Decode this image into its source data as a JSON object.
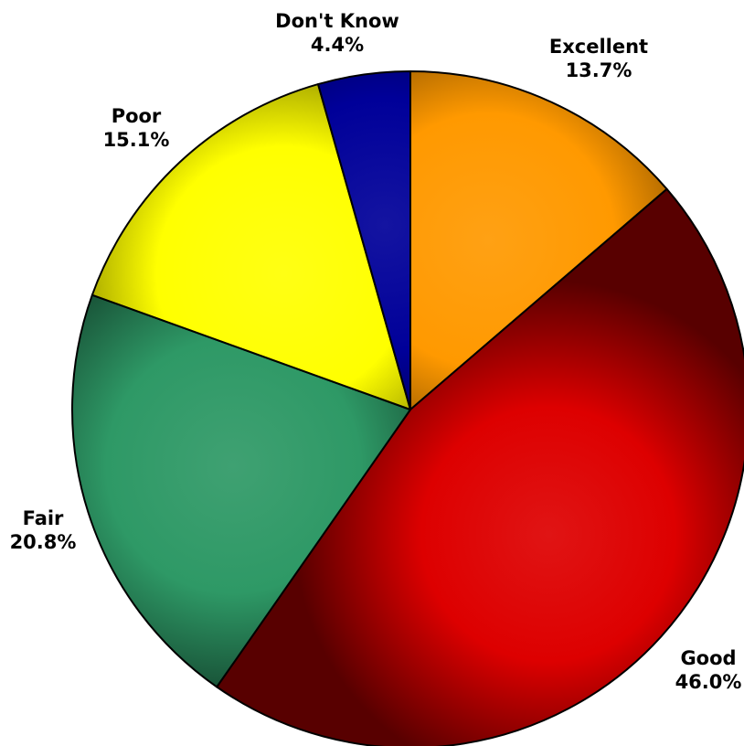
{
  "chart_data": {
    "type": "pie",
    "title": "",
    "start_angle_deg": 0,
    "direction": "clockwise",
    "slices": [
      {
        "label": "Excellent",
        "value": 13.7,
        "value_text": "13.7%",
        "color": "#FF9900"
      },
      {
        "label": "Good",
        "value": 46.0,
        "value_text": "46.0%",
        "color": "#DD0000"
      },
      {
        "label": "Fair",
        "value": 20.8,
        "value_text": "20.8%",
        "color": "#2E9966"
      },
      {
        "label": "Poor",
        "value": 15.1,
        "value_text": "15.1%",
        "color": "#FFFF00"
      },
      {
        "label": "Don't Know",
        "value": 4.4,
        "value_text": "4.4%",
        "color": "#000099"
      }
    ],
    "legend": "none"
  }
}
